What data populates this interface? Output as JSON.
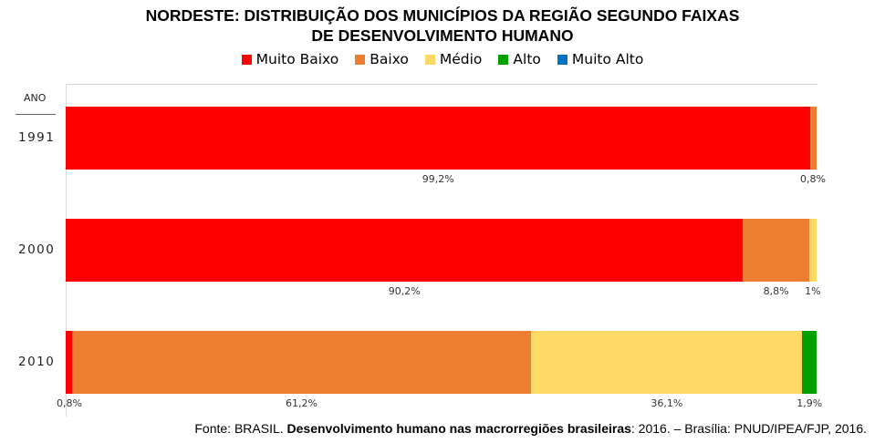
{
  "chart_data": {
    "type": "bar",
    "orientation": "horizontal",
    "stacked": true,
    "title_line1": "NORDESTE: DISTRIBUIÇÃO DOS MUNICÍPIOS DA REGIÃO SEGUNDO FAIXAS",
    "title_line2": "DE DESENVOLVIMENTO HUMANO",
    "ylabel": "ANO",
    "categories": [
      "1991",
      "2000",
      "2010"
    ],
    "legend_position": "top",
    "series": [
      {
        "name": "Muito Baixo",
        "color": "#FF0000",
        "values": [
          99.2,
          90.2,
          0.8
        ],
        "labels": [
          "99,2%",
          "90,2%",
          "0,8%"
        ]
      },
      {
        "name": "Baixo",
        "color": "#ED7D31",
        "values": [
          0.8,
          8.8,
          61.2
        ],
        "labels": [
          "0,8%",
          "8,8%",
          "61,2%"
        ]
      },
      {
        "name": "Médio",
        "color": "#FFD966",
        "values": [
          0,
          1,
          36.1
        ],
        "labels": [
          "",
          "1%",
          "36,1%"
        ]
      },
      {
        "name": "Alto",
        "color": "#00A000",
        "values": [
          0,
          0,
          1.9
        ],
        "labels": [
          "",
          "",
          "1,9%"
        ]
      },
      {
        "name": "Muito Alto",
        "color": "#0070C0",
        "values": [
          0,
          0,
          0
        ],
        "labels": [
          "",
          "",
          ""
        ]
      }
    ],
    "xlim": [
      0,
      100
    ]
  },
  "source": {
    "prefix": "Fonte: BRASIL. ",
    "bold": "Desenvolvimento humano nas macrorregiões brasileiras",
    "suffix": ": 2016. – Brasília: PNUD/IPEA/FJP,  2016."
  }
}
